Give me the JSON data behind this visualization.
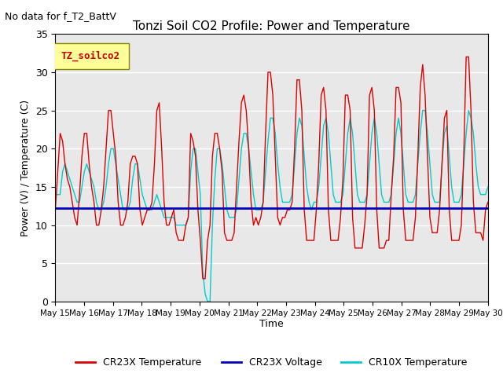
{
  "title": "Tonzi Soil CO2 Profile: Power and Temperature",
  "subtitle": "No data for f_T2_BattV",
  "ylabel": "Power (V) / Temperature (C)",
  "xlabel": "Time",
  "ylim": [
    0,
    35
  ],
  "yticks": [
    0,
    5,
    10,
    15,
    20,
    25,
    30,
    35
  ],
  "xtick_labels": [
    "May 15",
    "May 16",
    "May 17",
    "May 18",
    "May 19",
    "May 20",
    "May 21",
    "May 22",
    "May 23",
    "May 24",
    "May 25",
    "May 26",
    "May 27",
    "May 28",
    "May 29",
    "May 30"
  ],
  "bg_color": "#e8e8e8",
  "legend_box_color": "#ffff99",
  "legend_box_label": "TZ_soilco2",
  "cr23x_temp_color": "#dd0000",
  "cr23x_volt_color": "#0000bb",
  "cr10x_temp_color": "#00cccc",
  "cr23x_voltage_value": 12.2,
  "cr23x_temp": [
    12,
    17,
    22,
    21,
    18,
    16,
    15,
    13,
    11,
    10,
    14,
    19,
    22,
    22,
    18,
    15,
    13,
    10,
    10,
    12,
    15,
    20,
    25,
    25,
    22,
    19,
    13,
    10,
    10,
    11,
    13,
    18,
    19,
    19,
    18,
    12,
    10,
    11,
    12,
    12,
    13,
    18,
    25,
    26,
    20,
    13,
    10,
    10,
    11,
    12,
    9,
    8,
    8,
    8,
    10,
    11,
    22,
    21,
    19,
    12,
    8,
    3,
    3,
    8,
    10,
    19,
    22,
    22,
    20,
    17,
    9,
    8,
    8,
    8,
    9,
    15,
    21,
    26,
    27,
    25,
    20,
    13,
    10,
    11,
    10,
    11,
    13,
    22,
    30,
    30,
    27,
    19,
    11,
    10,
    11,
    11,
    12,
    12,
    13,
    20,
    29,
    29,
    25,
    12,
    8,
    8,
    8,
    8,
    12,
    18,
    27,
    28,
    25,
    12,
    8,
    8,
    8,
    8,
    11,
    16,
    27,
    27,
    25,
    11,
    7,
    7,
    7,
    7,
    10,
    14,
    27,
    28,
    25,
    12,
    7,
    7,
    7,
    8,
    8,
    14,
    19,
    28,
    28,
    26,
    12,
    8,
    8,
    8,
    8,
    11,
    19,
    28,
    31,
    27,
    19,
    11,
    9,
    9,
    9,
    12,
    18,
    24,
    25,
    12,
    8,
    8,
    8,
    8,
    10,
    19,
    32,
    32,
    25,
    13,
    9,
    9,
    9,
    8,
    12,
    13
  ],
  "cr10x_temp": [
    14,
    14,
    14,
    17,
    18,
    17,
    16,
    15,
    14,
    13,
    13,
    15,
    17,
    18,
    17,
    16,
    15,
    13,
    12,
    12,
    13,
    15,
    18,
    20,
    20,
    18,
    16,
    14,
    12,
    12,
    12,
    13,
    16,
    18,
    18,
    16,
    14,
    13,
    12,
    12,
    12,
    13,
    14,
    13,
    12,
    11,
    11,
    11,
    11,
    11,
    10,
    10,
    10,
    10,
    10,
    11,
    17,
    20,
    20,
    17,
    14,
    4,
    1,
    0,
    0,
    10,
    16,
    20,
    20,
    18,
    15,
    12,
    11,
    11,
    11,
    12,
    16,
    20,
    22,
    22,
    20,
    17,
    14,
    12,
    12,
    12,
    13,
    17,
    21,
    24,
    24,
    22,
    18,
    15,
    13,
    13,
    13,
    13,
    14,
    18,
    22,
    24,
    23,
    19,
    15,
    13,
    12,
    13,
    13,
    15,
    19,
    23,
    24,
    22,
    18,
    14,
    13,
    13,
    13,
    14,
    18,
    22,
    24,
    22,
    18,
    14,
    13,
    13,
    13,
    14,
    18,
    22,
    24,
    22,
    18,
    14,
    13,
    13,
    13,
    14,
    18,
    22,
    24,
    22,
    18,
    14,
    13,
    13,
    13,
    14,
    18,
    22,
    25,
    25,
    22,
    18,
    14,
    13,
    13,
    13,
    18,
    22,
    23,
    19,
    15,
    13,
    13,
    13,
    14,
    18,
    22,
    25,
    24,
    22,
    18,
    15,
    14,
    14,
    14,
    15
  ]
}
